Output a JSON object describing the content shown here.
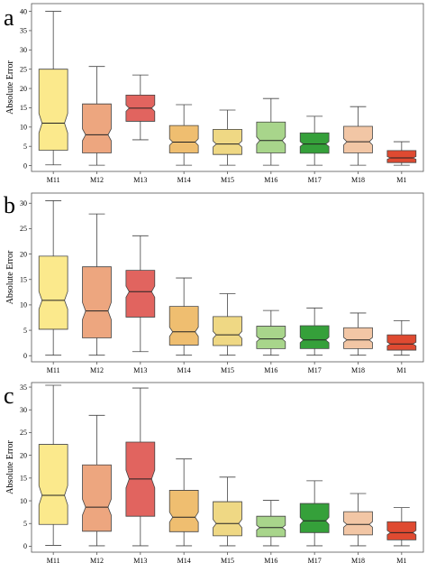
{
  "chart_data": [
    {
      "type": "boxplot",
      "panel_label": "a",
      "ylabel": "Absolute Error",
      "ylim": [
        -1.5,
        42
      ],
      "yticks": [
        0,
        5,
        10,
        15,
        20,
        25,
        30,
        35,
        40
      ],
      "categories": [
        "M11",
        "M12",
        "M13",
        "M14",
        "M15",
        "M16",
        "M17",
        "M18",
        "M1"
      ],
      "colors": [
        "#fbe98c",
        "#eda67f",
        "#e1645f",
        "#efbe70",
        "#efd884",
        "#a8d58b",
        "#35a03a",
        "#f2c6a5",
        "#df4a31"
      ],
      "boxes": [
        {
          "min": 0.2,
          "q1": 4.0,
          "median": 11.0,
          "q3": 25.0,
          "max": 40.0
        },
        {
          "min": 0.1,
          "q1": 3.3,
          "median": 8.0,
          "q3": 16.0,
          "max": 25.7
        },
        {
          "min": 6.7,
          "q1": 11.5,
          "median": 14.9,
          "q3": 18.3,
          "max": 23.5
        },
        {
          "min": 0.1,
          "q1": 3.3,
          "median": 6.1,
          "q3": 10.4,
          "max": 15.8
        },
        {
          "min": 0.1,
          "q1": 2.9,
          "median": 5.6,
          "q3": 9.4,
          "max": 14.4
        },
        {
          "min": 0.1,
          "q1": 3.3,
          "median": 6.5,
          "q3": 11.3,
          "max": 17.4
        },
        {
          "min": 0.1,
          "q1": 3.2,
          "median": 5.6,
          "q3": 8.5,
          "max": 12.8
        },
        {
          "min": 0.1,
          "q1": 3.3,
          "median": 6.2,
          "q3": 10.2,
          "max": 15.3
        },
        {
          "min": 0.1,
          "q1": 0.8,
          "median": 2.0,
          "q3": 3.9,
          "max": 6.2
        }
      ]
    },
    {
      "type": "boxplot",
      "panel_label": "b",
      "ylabel": "Absolute Error",
      "ylim": [
        -1.2,
        32
      ],
      "yticks": [
        0,
        5,
        10,
        15,
        20,
        25,
        30
      ],
      "categories": [
        "M11",
        "M12",
        "M13",
        "M14",
        "M15",
        "M16",
        "M17",
        "M18",
        "M1"
      ],
      "colors": [
        "#fbe98c",
        "#eda67f",
        "#e1645f",
        "#efbe70",
        "#efd884",
        "#a8d58b",
        "#35a03a",
        "#f2c6a5",
        "#df4a31"
      ],
      "boxes": [
        {
          "min": 0.1,
          "q1": 5.2,
          "median": 10.9,
          "q3": 19.6,
          "max": 30.5
        },
        {
          "min": 0.1,
          "q1": 3.5,
          "median": 8.8,
          "q3": 17.5,
          "max": 27.9
        },
        {
          "min": 0.8,
          "q1": 7.6,
          "median": 12.6,
          "q3": 16.8,
          "max": 23.6
        },
        {
          "min": 0.1,
          "q1": 2.1,
          "median": 4.7,
          "q3": 9.7,
          "max": 15.3
        },
        {
          "min": 0.1,
          "q1": 2.0,
          "median": 4.1,
          "q3": 7.7,
          "max": 12.2
        },
        {
          "min": 0.1,
          "q1": 1.4,
          "median": 3.3,
          "q3": 5.8,
          "max": 8.9
        },
        {
          "min": 0.1,
          "q1": 1.4,
          "median": 3.1,
          "q3": 5.9,
          "max": 9.4
        },
        {
          "min": 0.1,
          "q1": 1.4,
          "median": 3.1,
          "q3": 5.5,
          "max": 8.4
        },
        {
          "min": 0.1,
          "q1": 1.1,
          "median": 2.3,
          "q3": 4.1,
          "max": 6.9
        }
      ]
    },
    {
      "type": "boxplot",
      "panel_label": "c",
      "ylabel": "Absolute Error",
      "ylim": [
        -1.3,
        36
      ],
      "yticks": [
        0,
        5,
        10,
        15,
        20,
        25,
        30,
        35
      ],
      "categories": [
        "M11",
        "M12",
        "M13",
        "M14",
        "M15",
        "M16",
        "M17",
        "M18",
        "M1"
      ],
      "colors": [
        "#fbe98c",
        "#eda67f",
        "#e1645f",
        "#efbe70",
        "#efd884",
        "#a8d58b",
        "#35a03a",
        "#f2c6a5",
        "#df4a31"
      ],
      "boxes": [
        {
          "min": 0.2,
          "q1": 4.8,
          "median": 11.2,
          "q3": 22.4,
          "max": 35.4
        },
        {
          "min": 0.1,
          "q1": 3.3,
          "median": 8.6,
          "q3": 17.9,
          "max": 28.8
        },
        {
          "min": 0.1,
          "q1": 6.6,
          "median": 14.8,
          "q3": 22.9,
          "max": 34.8
        },
        {
          "min": 0.1,
          "q1": 3.2,
          "median": 6.4,
          "q3": 12.3,
          "max": 19.2
        },
        {
          "min": 0.1,
          "q1": 2.3,
          "median": 5.0,
          "q3": 9.8,
          "max": 15.2
        },
        {
          "min": 0.1,
          "q1": 2.1,
          "median": 4.1,
          "q3": 6.6,
          "max": 10.1
        },
        {
          "min": 0.1,
          "q1": 3.0,
          "median": 5.6,
          "q3": 9.4,
          "max": 14.4
        },
        {
          "min": 0.1,
          "q1": 2.5,
          "median": 4.8,
          "q3": 7.6,
          "max": 11.6
        },
        {
          "min": 0.1,
          "q1": 1.4,
          "median": 3.0,
          "q3": 5.4,
          "max": 8.5
        }
      ]
    }
  ]
}
